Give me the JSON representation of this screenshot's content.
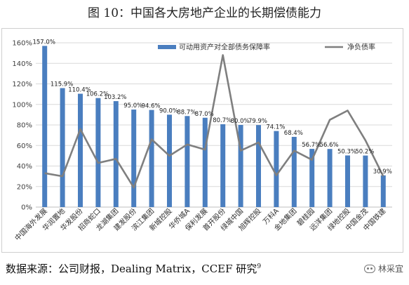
{
  "title": "图 10：中国各大房地产企业的长期偿债能力",
  "source": {
    "text": "数据来源：公司财报，Dealing Matrix，CCEF 研究",
    "sup": "9"
  },
  "watermark": {
    "text": "林采宜",
    "icon": "wechat-icon"
  },
  "chart_data": {
    "type": "bar+line",
    "categories": [
      "中国海外发展",
      "华润置地",
      "华发股份",
      "招商蛇口",
      "龙湖集团",
      "建发股份",
      "滨江集团",
      "新城控股",
      "华侨城A",
      "保利发展",
      "首开股份",
      "绿城中国",
      "旭辉控股",
      "万科A",
      "金地集团",
      "碧桂园",
      "远洋集团",
      "绿地控股",
      "中国金茂",
      "中国铁建"
    ],
    "series": [
      {
        "name": "可动用资产对全部债务保障率",
        "type": "bar",
        "color": "#4a7ebf",
        "values": [
          157.0,
          115.9,
          110.4,
          106.2,
          103.2,
          95.0,
          94.6,
          90.0,
          88.7,
          87.0,
          80.7,
          80.0,
          79.9,
          74.1,
          68.4,
          56.7,
          56.6,
          50.3,
          50.2,
          30.9
        ],
        "labels": [
          "157.0%",
          "115.9%",
          "110.4%",
          "106.2%",
          "103.2%",
          "95.0%",
          "94.6%",
          "90.0%",
          "88.7%",
          "87.0%",
          "80.7%",
          "80.0%",
          "79.9%",
          "74.1%",
          "68.4%",
          "56.7%",
          "56.6%",
          "50.3%",
          "50.2%",
          "30.9%"
        ]
      },
      {
        "name": "净负债率",
        "type": "line",
        "color": "#7f7f7f",
        "values": [
          33,
          30,
          76,
          43,
          47,
          19,
          66,
          50,
          61,
          56,
          148,
          55,
          63,
          31,
          55,
          46,
          85,
          94,
          65,
          30
        ]
      }
    ],
    "y_axis": {
      "min": 0,
      "max": 160,
      "step": 20,
      "tick_labels": [
        "0%",
        "20%",
        "40%",
        "60%",
        "80%",
        "100%",
        "120%",
        "140%",
        "160%"
      ]
    },
    "grid": true,
    "legend_position": "top-right"
  }
}
